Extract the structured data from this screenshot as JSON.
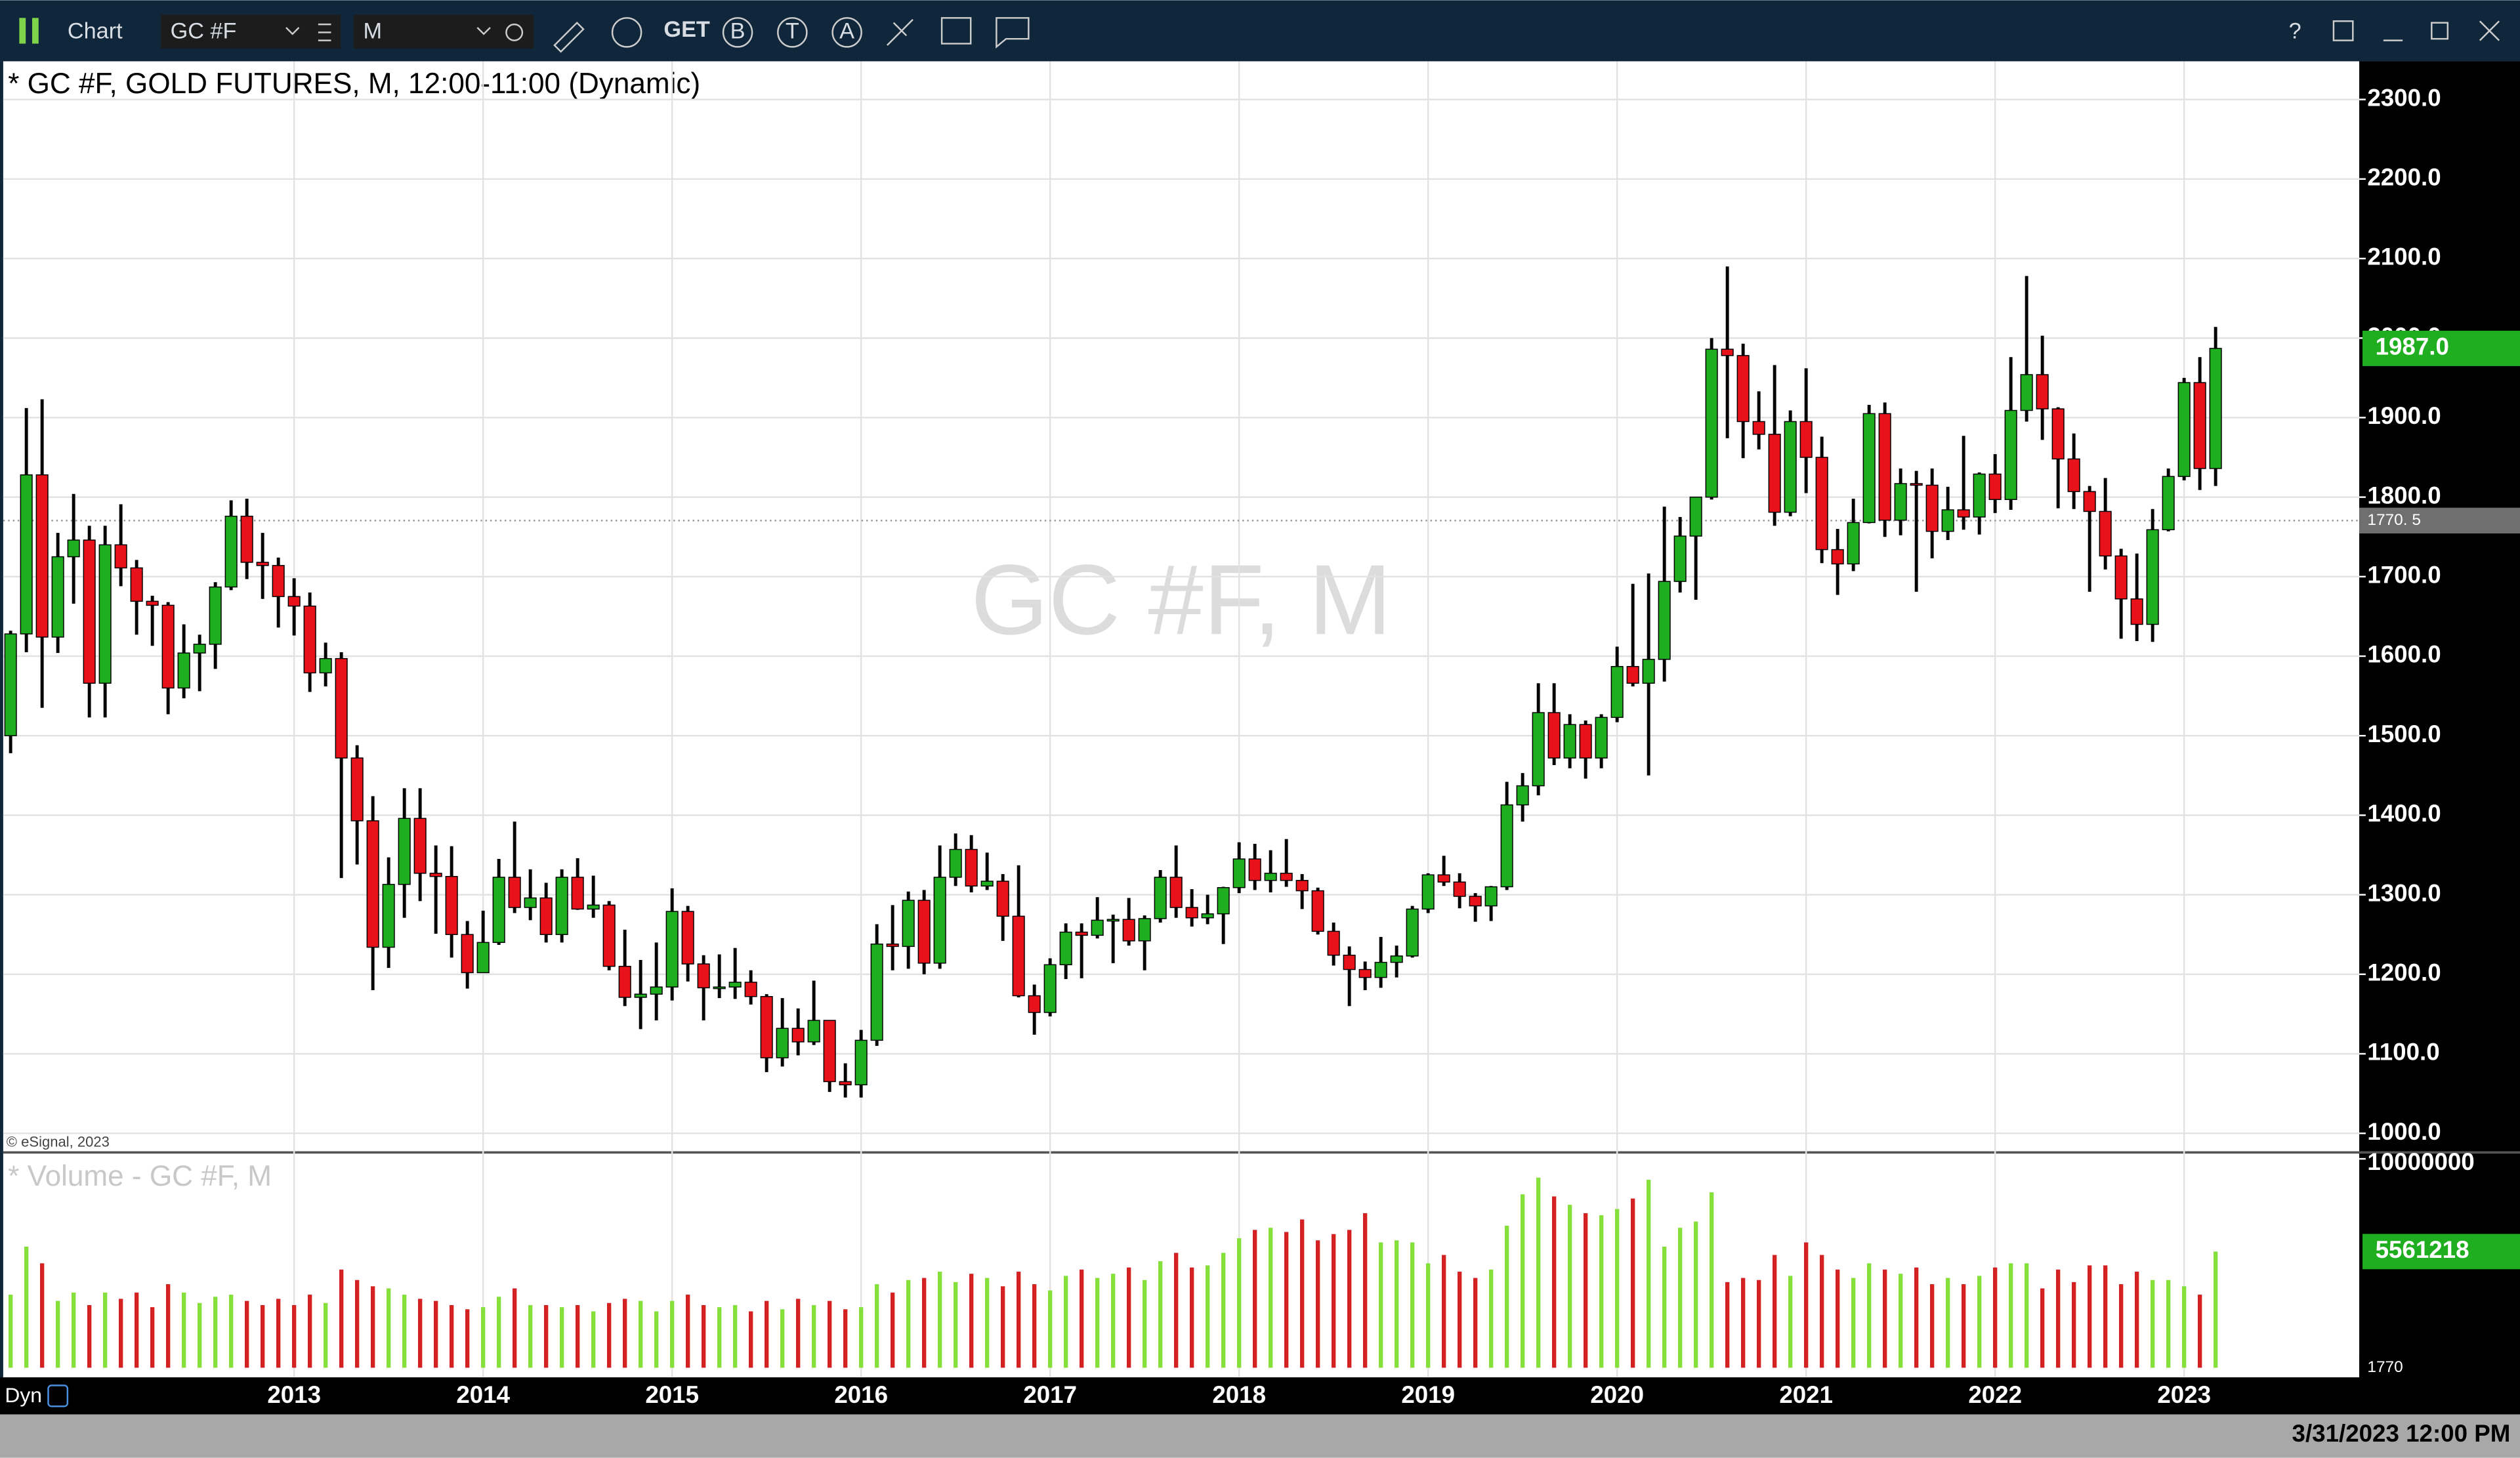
{
  "toolbar": {
    "app": "Chart",
    "symbol": "GC #F",
    "interval": "M",
    "get": "GET",
    "b": "B",
    "t": "T",
    "a": "A",
    "help": "?"
  },
  "footer": {
    "dyn": "Dyn",
    "datetime": "3/31/2023 12:00 PM",
    "copyright": "© eSignal, 2023",
    "watermark": "GC #F, M"
  },
  "chart_data": {
    "type": "candlestick",
    "title": "* GC #F, GOLD FUTURES, M, 12:00-11:00 (Dynamic)",
    "up_color": "#1fae1f",
    "down_color": "#e8121a",
    "wick_color": "#000000",
    "grid": true,
    "last_label": "1987.0",
    "crosshair": {
      "value": 1770.5,
      "label": "1770. 5",
      "volume_label": "1770"
    },
    "ylim": [
      978,
      2348
    ],
    "yticks": [
      {
        "value": 1000,
        "label": "1000.0"
      },
      {
        "value": 1100,
        "label": "1100.0"
      },
      {
        "value": 1200,
        "label": "1200.0"
      },
      {
        "value": 1300,
        "label": "1300.0"
      },
      {
        "value": 1400,
        "label": "1400.0"
      },
      {
        "value": 1500,
        "label": "1500.0"
      },
      {
        "value": 1600,
        "label": "1600.0"
      },
      {
        "value": 1700,
        "label": "1700.0"
      },
      {
        "value": 1800,
        "label": "1800.0"
      },
      {
        "value": 1900,
        "label": "1900.0"
      },
      {
        "value": 2000,
        "label": "2000.0"
      },
      {
        "value": 2100,
        "label": "2100.0"
      },
      {
        "value": 2200,
        "label": "2200.0"
      },
      {
        "value": 2300,
        "label": "2300.0"
      }
    ],
    "categories": [
      null,
      null,
      null,
      null,
      null,
      null,
      null,
      null,
      null,
      null,
      null,
      null,
      null,
      null,
      null,
      null,
      null,
      null,
      "2013",
      null,
      null,
      null,
      null,
      null,
      null,
      null,
      null,
      null,
      null,
      null,
      "2014",
      null,
      null,
      null,
      null,
      null,
      null,
      null,
      null,
      null,
      null,
      null,
      "2015",
      null,
      null,
      null,
      null,
      null,
      null,
      null,
      null,
      null,
      null,
      null,
      "2016",
      null,
      null,
      null,
      null,
      null,
      null,
      null,
      null,
      null,
      null,
      null,
      "2017",
      null,
      null,
      null,
      null,
      null,
      null,
      null,
      null,
      null,
      null,
      null,
      "2018",
      null,
      null,
      null,
      null,
      null,
      null,
      null,
      null,
      null,
      null,
      null,
      "2019",
      null,
      null,
      null,
      null,
      null,
      null,
      null,
      null,
      null,
      null,
      null,
      "2020",
      null,
      null,
      null,
      null,
      null,
      null,
      null,
      null,
      null,
      null,
      null,
      "2021",
      null,
      null,
      null,
      null,
      null,
      null,
      null,
      null,
      null,
      null,
      null,
      "2022",
      null,
      null,
      null,
      null,
      null,
      null,
      null,
      null,
      null,
      null,
      null,
      "2023",
      null,
      null
    ],
    "open": [
      1500,
      1628,
      1828,
      1624,
      1725,
      1746,
      1566,
      1740,
      1711,
      1669,
      1664,
      1560,
      1604,
      1615,
      1687,
      1776,
      1718,
      1714,
      1675,
      1663,
      1579,
      1597,
      1472,
      1393,
      1234,
      1313,
      1396,
      1327,
      1323,
      1250,
      1202,
      1240,
      1322,
      1284,
      1296,
      1250,
      1322,
      1282,
      1287,
      1210,
      1171,
      1175,
      1184,
      1279,
      1213,
      1183,
      1184,
      1190,
      1172,
      1095,
      1132,
      1115,
      1142,
      1065,
      1061,
      1117,
      1238,
      1235,
      1293,
      1214,
      1322,
      1357,
      1311,
      1317,
      1273,
      1173,
      1152,
      1212,
      1253,
      1249,
      1268,
      1269,
      1242,
      1270,
      1322,
      1284,
      1271,
      1276,
      1309,
      1345,
      1318,
      1327,
      1318,
      1305,
      1254,
      1224,
      1206,
      1196,
      1215,
      1223,
      1282,
      1325,
      1316,
      1298,
      1286,
      1310,
      1413,
      1437,
      1529,
      1472,
      1514,
      1472,
      1523,
      1587,
      1566,
      1596,
      1694,
      1751,
      1800,
      1986,
      1978,
      1895,
      1879,
      1781,
      1895,
      1850,
      1734,
      1716,
      1768,
      1905,
      1771,
      1817,
      1815,
      1757,
      1784,
      1775,
      1829,
      1797,
      1909,
      1954,
      1911,
      1848,
      1807,
      1782,
      1726,
      1672,
      1640,
      1759,
      1826,
      1944,
      1836
    ],
    "high": [
      1632,
      1912,
      1923,
      1755,
      1804,
      1764,
      1764,
      1791,
      1721,
      1676,
      1668,
      1640,
      1627,
      1693,
      1796,
      1798,
      1755,
      1724,
      1698,
      1680,
      1617,
      1605,
      1488,
      1424,
      1347,
      1434,
      1434,
      1362,
      1361,
      1267,
      1280,
      1345,
      1392,
      1332,
      1315,
      1332,
      1346,
      1324,
      1292,
      1256,
      1218,
      1240,
      1308,
      1286,
      1224,
      1225,
      1233,
      1205,
      1175,
      1170,
      1157,
      1192,
      1142,
      1088,
      1130,
      1263,
      1287,
      1304,
      1306,
      1362,
      1377,
      1375,
      1353,
      1326,
      1337,
      1187,
      1220,
      1264,
      1264,
      1297,
      1275,
      1296,
      1274,
      1331,
      1362,
      1307,
      1300,
      1310,
      1366,
      1364,
      1356,
      1370,
      1326,
      1309,
      1265,
      1235,
      1216,
      1247,
      1236,
      1286,
      1327,
      1349,
      1327,
      1302,
      1311,
      1442,
      1453,
      1566,
      1566,
      1527,
      1519,
      1527,
      1612,
      1691,
      1704,
      1788,
      1775,
      1800,
      2000,
      2090,
      1993,
      1933,
      1966,
      1909,
      1962,
      1876,
      1760,
      1798,
      1916,
      1919,
      1836,
      1833,
      1836,
      1813,
      1877,
      1831,
      1854,
      1976,
      2078,
      2003,
      1913,
      1880,
      1814,
      1824,
      1735,
      1729,
      1785,
      1836,
      1950,
      1976,
      2014
    ],
    "low": [
      1478,
      1605,
      1535,
      1604,
      1666,
      1523,
      1523,
      1688,
      1627,
      1613,
      1527,
      1547,
      1556,
      1584,
      1683,
      1697,
      1672,
      1636,
      1626,
      1555,
      1562,
      1321,
      1338,
      1180,
      1208,
      1271,
      1292,
      1251,
      1221,
      1182,
      1202,
      1237,
      1277,
      1268,
      1240,
      1240,
      1281,
      1271,
      1205,
      1160,
      1131,
      1142,
      1167,
      1191,
      1142,
      1170,
      1169,
      1162,
      1077,
      1084,
      1098,
      1111,
      1052,
      1045,
      1045,
      1110,
      1205,
      1207,
      1200,
      1207,
      1311,
      1303,
      1306,
      1242,
      1171,
      1124,
      1147,
      1194,
      1195,
      1245,
      1214,
      1236,
      1205,
      1265,
      1271,
      1260,
      1263,
      1238,
      1302,
      1306,
      1303,
      1310,
      1282,
      1250,
      1211,
      1160,
      1180,
      1183,
      1196,
      1221,
      1277,
      1311,
      1283,
      1266,
      1267,
      1306,
      1392,
      1425,
      1463,
      1459,
      1446,
      1459,
      1517,
      1562,
      1450,
      1568,
      1680,
      1671,
      1797,
      1874,
      1849,
      1860,
      1764,
      1776,
      1805,
      1717,
      1677,
      1707,
      1767,
      1750,
      1752,
      1681,
      1723,
      1746,
      1759,
      1753,
      1780,
      1784,
      1895,
      1872,
      1786,
      1785,
      1681,
      1709,
      1622,
      1619,
      1618,
      1757,
      1821,
      1809,
      1814
    ],
    "close": [
      1628,
      1828,
      1624,
      1725,
      1746,
      1566,
      1740,
      1711,
      1669,
      1664,
      1560,
      1604,
      1615,
      1687,
      1776,
      1718,
      1714,
      1675,
      1663,
      1579,
      1597,
      1472,
      1393,
      1234,
      1313,
      1396,
      1327,
      1323,
      1250,
      1202,
      1240,
      1322,
      1284,
      1296,
      1250,
      1322,
      1282,
      1287,
      1210,
      1171,
      1175,
      1184,
      1279,
      1213,
      1183,
      1184,
      1190,
      1172,
      1095,
      1132,
      1115,
      1142,
      1065,
      1061,
      1117,
      1238,
      1235,
      1293,
      1214,
      1322,
      1357,
      1311,
      1317,
      1273,
      1173,
      1152,
      1212,
      1253,
      1249,
      1268,
      1269,
      1242,
      1270,
      1322,
      1284,
      1271,
      1276,
      1309,
      1345,
      1318,
      1327,
      1318,
      1305,
      1254,
      1224,
      1206,
      1196,
      1215,
      1223,
      1282,
      1325,
      1316,
      1298,
      1286,
      1310,
      1413,
      1437,
      1529,
      1472,
      1514,
      1472,
      1523,
      1587,
      1566,
      1596,
      1694,
      1751,
      1800,
      1986,
      1978,
      1895,
      1879,
      1781,
      1895,
      1850,
      1734,
      1716,
      1768,
      1905,
      1771,
      1817,
      1815,
      1757,
      1784,
      1775,
      1829,
      1797,
      1909,
      1954,
      1911,
      1848,
      1807,
      1782,
      1726,
      1672,
      1640,
      1759,
      1826,
      1944,
      1836,
      1987
    ],
    "volume": {
      "label": "* Volume - GC #F, M",
      "up_color": "#86e03c",
      "down_color": "#d42222",
      "last_label": "5561218",
      "ylim": [
        0,
        10230000
      ],
      "yticks": [
        10000000
      ],
      "values": [
        3500000,
        5800000,
        5000000,
        3200000,
        3600000,
        3000000,
        3600000,
        3300000,
        3600000,
        2900000,
        4000000,
        3600000,
        3100000,
        3400000,
        3500000,
        3200000,
        3000000,
        3300000,
        3000000,
        3500000,
        3100000,
        4700000,
        4200000,
        3900000,
        3800000,
        3500000,
        3300000,
        3200000,
        3000000,
        2800000,
        2900000,
        3400000,
        3800000,
        3000000,
        3000000,
        2900000,
        3000000,
        2700000,
        3100000,
        3300000,
        3200000,
        2700000,
        3200000,
        3500000,
        3000000,
        2900000,
        3000000,
        2700000,
        3200000,
        2800000,
        3300000,
        3000000,
        3200000,
        2800000,
        2900000,
        4000000,
        3600000,
        4200000,
        4300000,
        4600000,
        4100000,
        4500000,
        4300000,
        3900000,
        4600000,
        4000000,
        3700000,
        4400000,
        4700000,
        4300000,
        4500000,
        4800000,
        4200000,
        5100000,
        5500000,
        4800000,
        4900000,
        5500000,
        6200000,
        6600000,
        6700000,
        6500000,
        7100000,
        6100000,
        6400000,
        6600000,
        7400000,
        6000000,
        6100000,
        6000000,
        5000000,
        5400000,
        4600000,
        4300000,
        4700000,
        6800000,
        8300000,
        9100000,
        8200000,
        7800000,
        7400000,
        7300000,
        7600000,
        8100000,
        9000000,
        5800000,
        6700000,
        7000000,
        8400000,
        4100000,
        4300000,
        4200000,
        5400000,
        4400000,
        6000000,
        5400000,
        4700000,
        4300000,
        5000000,
        4700000,
        4500000,
        4800000,
        4000000,
        4300000,
        4000000,
        4400000,
        4800000,
        5000000,
        5000000,
        3800000,
        4700000,
        4100000,
        4900000,
        4900000,
        4000000,
        4600000,
        4200000,
        4200000,
        3900000,
        3500000,
        5561218
      ]
    }
  }
}
